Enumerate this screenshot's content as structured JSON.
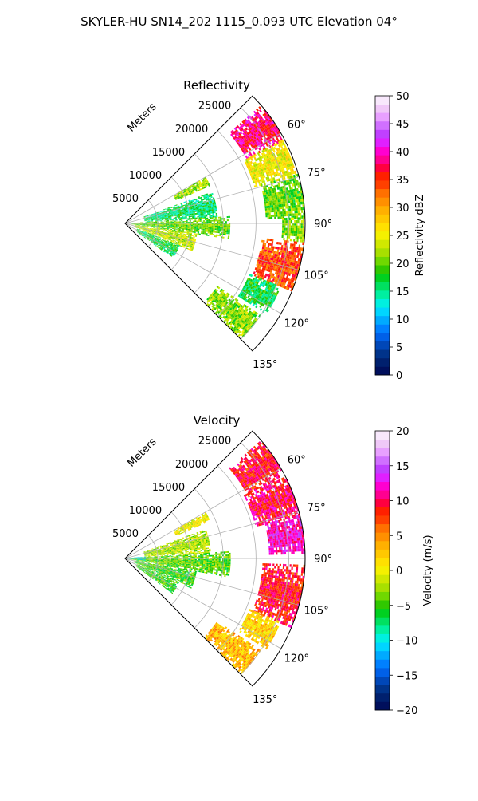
{
  "figure_title": "SKYLER-HU  SN14_202  1115_0.093 UTC Elevation 04°",
  "chart_data": [
    {
      "type": "heatmap",
      "projection": "polar-sector",
      "title": "Reflectivity",
      "radial_label": "Meters",
      "radial_ticks": [
        5000,
        10000,
        15000,
        20000,
        25000
      ],
      "radial_tick_labels": [
        "5000",
        "10000",
        "15000",
        "20000",
        "25000"
      ],
      "radial_range": [
        0,
        27500
      ],
      "azimuth_range_deg": [
        45,
        135
      ],
      "azimuth_ticks": [
        60,
        75,
        90,
        105,
        120,
        135
      ],
      "azimuth_tick_labels": [
        "60°",
        "75°",
        "90°",
        "105°",
        "120°",
        "135°"
      ],
      "grid": true,
      "colorbar": {
        "label": "Reflectivity dBZ",
        "min": 0,
        "max": 50,
        "ticks": [
          0,
          5,
          10,
          15,
          20,
          25,
          30,
          35,
          40,
          45,
          50
        ],
        "tick_labels": [
          "0",
          "5",
          "10",
          "15",
          "20",
          "25",
          "30",
          "35",
          "40",
          "45",
          "50"
        ],
        "colors": [
          "#000f5c",
          "#00206e",
          "#00338a",
          "#0047b8",
          "#0060e8",
          "#0080ff",
          "#00aaff",
          "#00d5ff",
          "#00f0e0",
          "#00f0a0",
          "#00e060",
          "#00d020",
          "#30c800",
          "#70d800",
          "#a8e000",
          "#d0e800",
          "#f5f000",
          "#ffe000",
          "#ffc800",
          "#ffb000",
          "#ff9000",
          "#ff7000",
          "#ff4000",
          "#ff2000",
          "#ff0040",
          "#ff0090",
          "#ff00d0",
          "#e020ff",
          "#c040ff",
          "#d070ff",
          "#e8a0ff",
          "#f0c8f8",
          "#f8e8fc"
        ]
      },
      "echo_regions": [
        {
          "az": [
            49,
            62
          ],
          "r": [
            21000,
            27300
          ],
          "value": 38
        },
        {
          "az": [
            62,
            74
          ],
          "r": [
            20500,
            27200
          ],
          "value": 25
        },
        {
          "az": [
            74,
            88
          ],
          "r": [
            21500,
            27300
          ],
          "value": 20
        },
        {
          "az": [
            88,
            96
          ],
          "r": [
            24000,
            27200
          ],
          "value": 21
        },
        {
          "az": [
            96,
            112
          ],
          "r": [
            21000,
            27300
          ],
          "value": 34
        },
        {
          "az": [
            112,
            122
          ],
          "r": [
            20500,
            25500
          ],
          "value": 17
        },
        {
          "az": [
            124,
            134
          ],
          "r": [
            17000,
            25000
          ],
          "value": 21
        },
        {
          "az": [
            70,
            86
          ],
          "r": [
            3000,
            14000
          ],
          "value": 16
        },
        {
          "az": [
            86,
            98
          ],
          "r": [
            1000,
            16000
          ],
          "value": 20
        },
        {
          "az": [
            98,
            112
          ],
          "r": [
            1500,
            11000
          ],
          "value": 23
        },
        {
          "az": [
            112,
            126
          ],
          "r": [
            2000,
            9000
          ],
          "value": 17
        },
        {
          "az": [
            60,
            66
          ],
          "r": [
            8500,
            14000
          ],
          "value": 22
        }
      ]
    },
    {
      "type": "heatmap",
      "projection": "polar-sector",
      "title": "Velocity",
      "radial_label": "Meters",
      "radial_ticks": [
        5000,
        10000,
        15000,
        20000,
        25000
      ],
      "radial_tick_labels": [
        "5000",
        "10000",
        "15000",
        "20000",
        "25000"
      ],
      "radial_range": [
        0,
        27500
      ],
      "azimuth_range_deg": [
        45,
        135
      ],
      "azimuth_ticks": [
        60,
        75,
        90,
        105,
        120,
        135
      ],
      "azimuth_tick_labels": [
        "60°",
        "75°",
        "90°",
        "105°",
        "120°",
        "135°"
      ],
      "grid": true,
      "colorbar": {
        "label": "Velocity (m/s)",
        "min": -20,
        "max": 20,
        "ticks": [
          -20,
          -15,
          -10,
          -5,
          0,
          5,
          10,
          15,
          20
        ],
        "tick_labels": [
          "−20",
          "−15",
          "−10",
          "−5",
          "0",
          "5",
          "10",
          "15",
          "20"
        ],
        "colors": [
          "#000f5c",
          "#00206e",
          "#00338a",
          "#0047b8",
          "#0060e8",
          "#0080ff",
          "#00aaff",
          "#00d5ff",
          "#00f0e0",
          "#00f0a0",
          "#00e060",
          "#00d020",
          "#30c800",
          "#70d800",
          "#a8e000",
          "#d0e800",
          "#f5f000",
          "#ffe000",
          "#ffc800",
          "#ffb000",
          "#ff9000",
          "#ff7000",
          "#ff4000",
          "#ff2000",
          "#ff0040",
          "#ff0090",
          "#ff00d0",
          "#e020ff",
          "#c040ff",
          "#d070ff",
          "#e8a0ff",
          "#f0c8f8",
          "#f8e8fc"
        ]
      },
      "echo_regions": [
        {
          "az": [
            49,
            62
          ],
          "r": [
            21000,
            27300
          ],
          "value": 9
        },
        {
          "az": [
            62,
            76
          ],
          "r": [
            20500,
            27300
          ],
          "value": 10
        },
        {
          "az": [
            76,
            88
          ],
          "r": [
            22000,
            27300
          ],
          "value": 12
        },
        {
          "az": [
            92,
            112
          ],
          "r": [
            21000,
            27300
          ],
          "value": 9
        },
        {
          "az": [
            112,
            122
          ],
          "r": [
            20500,
            25500
          ],
          "value": 2
        },
        {
          "az": [
            124,
            134
          ],
          "r": [
            17000,
            25000
          ],
          "value": 3
        },
        {
          "az": [
            70,
            86
          ],
          "r": [
            3000,
            13000
          ],
          "value": -2
        },
        {
          "az": [
            86,
            100
          ],
          "r": [
            800,
            16000
          ],
          "value": -4
        },
        {
          "az": [
            100,
            114
          ],
          "r": [
            1500,
            11000
          ],
          "value": -5
        },
        {
          "az": [
            114,
            126
          ],
          "r": [
            2000,
            9000
          ],
          "value": -5
        },
        {
          "az": [
            84,
            96
          ],
          "r": [
            300,
            3000
          ],
          "value": -10
        },
        {
          "az": [
            60,
            66
          ],
          "r": [
            8500,
            14000
          ],
          "value": 0
        }
      ]
    }
  ]
}
